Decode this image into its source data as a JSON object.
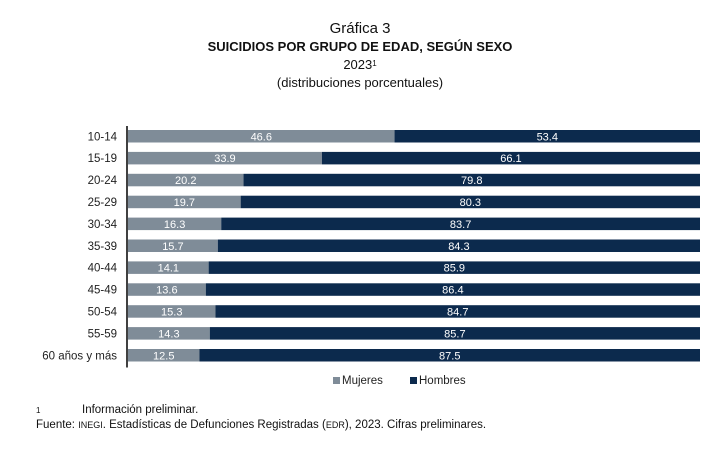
{
  "chart_data": {
    "type": "bar",
    "orientation": "horizontal",
    "stacked": true,
    "title_line1": "Gráfica 3",
    "title": "SUICIDIOS POR GRUPO DE EDAD, SEGÚN SEXO",
    "year": "2023",
    "year_footnote_mark": "1",
    "subtitle": "(distribuciones porcentuales)",
    "categories": [
      "10-14",
      "15-19",
      "20-24",
      "25-29",
      "30-34",
      "35-39",
      "40-44",
      "45-49",
      "50-54",
      "55-59",
      "60 años y más"
    ],
    "series": [
      {
        "name": "Mujeres",
        "color": "#7f8c98",
        "values": [
          46.6,
          33.9,
          20.2,
          19.7,
          16.3,
          15.7,
          14.1,
          13.6,
          15.3,
          14.3,
          12.5
        ]
      },
      {
        "name": "Hombres",
        "color": "#0c2a4d",
        "values": [
          53.4,
          66.1,
          79.8,
          80.3,
          83.7,
          84.3,
          85.9,
          86.4,
          84.7,
          85.7,
          87.5
        ]
      }
    ],
    "xlim": [
      0,
      100
    ],
    "grid": false,
    "legend": "bottom"
  },
  "footnote": {
    "mark": "1",
    "text": "Información preliminar."
  },
  "source": {
    "label": "Fuente: ",
    "org": "INEGI",
    "text_before": ". Estadísticas de Defunciones Registradas (",
    "abbr": "EDR",
    "text_after": "), 2023. Cifras preliminares."
  }
}
